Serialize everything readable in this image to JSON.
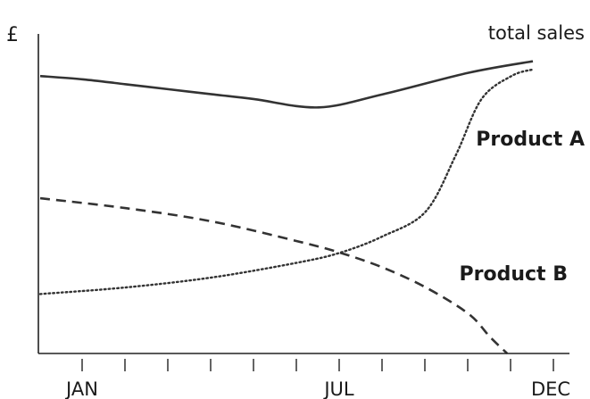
{
  "chart_data": {
    "type": "line",
    "y_axis_label": "£",
    "x_tick_labels": [
      "JAN",
      "JUL",
      "DEC"
    ],
    "x_tick_count": 12,
    "grid": false,
    "legend": "none",
    "series": [
      {
        "name": "total sales",
        "style": "solid",
        "color": "#333333",
        "points": [
          [
            0,
            8.4
          ],
          [
            1,
            8.3
          ],
          [
            2,
            8.15
          ],
          [
            3,
            8.0
          ],
          [
            4,
            7.85
          ],
          [
            5,
            7.7
          ],
          [
            6.5,
            7.45
          ],
          [
            8,
            7.85
          ],
          [
            10,
            8.5
          ],
          [
            11.5,
            8.85
          ]
        ]
      },
      {
        "name": "Product A",
        "style": "dotted",
        "color": "#333333",
        "points": [
          [
            0,
            1.8
          ],
          [
            2,
            2.0
          ],
          [
            4,
            2.3
          ],
          [
            6,
            2.75
          ],
          [
            7,
            3.05
          ],
          [
            8,
            3.55
          ],
          [
            9,
            4.3
          ],
          [
            9.7,
            6.0
          ],
          [
            10.3,
            7.7
          ],
          [
            11,
            8.4
          ],
          [
            11.5,
            8.6
          ]
        ]
      },
      {
        "name": "Product B",
        "style": "dashed",
        "color": "#333333",
        "points": [
          [
            0,
            4.7
          ],
          [
            2,
            4.4
          ],
          [
            4,
            4.0
          ],
          [
            6,
            3.4
          ],
          [
            7,
            3.05
          ],
          [
            8,
            2.6
          ],
          [
            9,
            2.0
          ],
          [
            10,
            1.2
          ],
          [
            10.5,
            0.5
          ],
          [
            10.9,
            0.0
          ]
        ]
      }
    ],
    "series_label_text": {
      "total_sales": "total sales",
      "product_a": "Product A",
      "product_b": "Product B"
    }
  }
}
